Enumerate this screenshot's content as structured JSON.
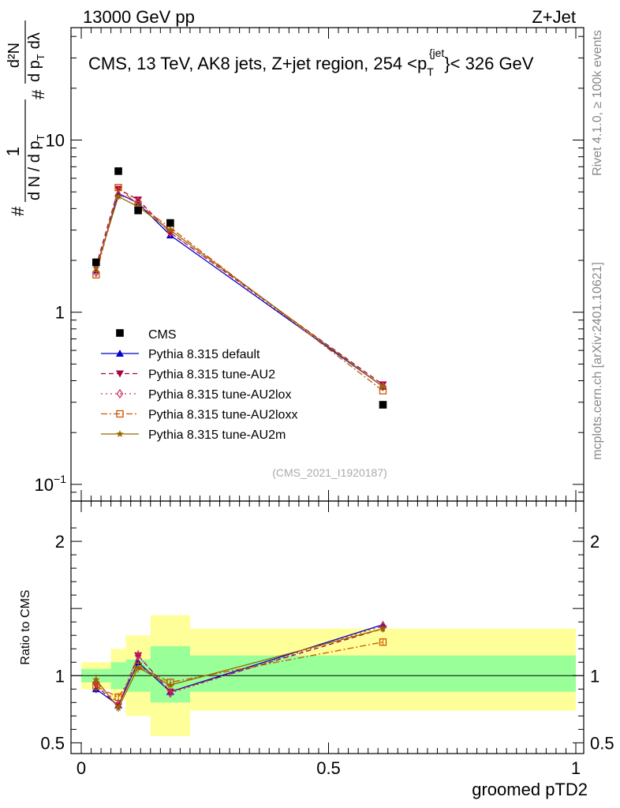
{
  "header": {
    "left": "13000 GeV pp",
    "right": "Z+Jet"
  },
  "chart_data": {
    "type": "line",
    "title": "CMS, 13 TeV, AK8 jets, Z+jet region, 254 <p_T^{jet}< 326 GeV",
    "title_parts": {
      "a": "CMS, 13 TeV, AK8 jets, Z+jet region, 254 <p",
      "sub": "T",
      "sup": "{jet",
      "b": "}< 326 GeV"
    },
    "xlabel": "groomed pTD2",
    "ylabel": "1/dN/dp_T # d^2N/dp_T dλ",
    "ylabel_parts": {
      "hash": "#",
      "one": "1",
      "den": "d N / d p",
      "T": "T",
      "hash2": "#",
      "num": "d²N",
      "den2": "d p",
      "T2": "T",
      "dl": "dλ"
    },
    "ratio_ylabel": "Ratio to CMS",
    "xlim": [
      0,
      1
    ],
    "ylim": [
      0.08,
      45
    ],
    "ratio_ylim": [
      0.42,
      2.3
    ],
    "x_ticks": [
      {
        "v": 0,
        "label": "0"
      },
      {
        "v": 0.5,
        "label": "0.5"
      },
      {
        "v": 1,
        "label": "1"
      }
    ],
    "y_ticks": [
      {
        "v": 10,
        "label": "10"
      },
      {
        "v": 1,
        "label": "1"
      },
      {
        "v": 0.1,
        "label": "10",
        "sup": "−1"
      }
    ],
    "ratio_ticks": [
      {
        "v": 2,
        "label": "2"
      },
      {
        "v": 1,
        "label": "1"
      },
      {
        "v": 0.5,
        "label": "0.5"
      }
    ],
    "x": [
      0.03,
      0.075,
      0.115,
      0.18,
      0.61
    ],
    "bins": [
      [
        0.0,
        0.06
      ],
      [
        0.06,
        0.09
      ],
      [
        0.09,
        0.14
      ],
      [
        0.14,
        0.22
      ],
      [
        0.22,
        1.0
      ]
    ],
    "cms": {
      "name": "CMS",
      "values": [
        1.95,
        6.6,
        3.9,
        3.3,
        0.29
      ]
    },
    "series": [
      {
        "name": "Pythia 8.315 default",
        "color": "#0000cc",
        "dash": "none",
        "marker": "triangle-up",
        "values": [
          1.75,
          4.9,
          4.3,
          2.8,
          0.37
        ],
        "ratio": [
          0.9,
          0.78,
          1.1,
          0.88,
          1.38
        ],
        "err": [
          0.03,
          0.03,
          0.04,
          0.02,
          0.02
        ]
      },
      {
        "name": "Pythia 8.315 tune-AU2",
        "color": "#aa0044",
        "dash": "6,4",
        "marker": "triangle-down",
        "values": [
          1.85,
          5.2,
          4.5,
          2.9,
          0.38
        ],
        "ratio": [
          0.93,
          0.77,
          1.15,
          0.88,
          1.35
        ],
        "err": [
          0.04,
          0.03,
          0.04,
          0.02,
          0.02
        ]
      },
      {
        "name": "Pythia 8.315 tune-AU2lox",
        "color": "#cc3366",
        "dash": "2,4",
        "marker": "diamond",
        "values": [
          1.7,
          4.8,
          4.4,
          2.9,
          0.37
        ],
        "ratio": [
          0.95,
          0.79,
          1.15,
          0.87,
          1.37
        ],
        "err": [
          0.04,
          0.03,
          0.04,
          0.02,
          0.02
        ]
      },
      {
        "name": "Pythia 8.315 tune-AU2loxx",
        "color": "#cc5500",
        "dash": "8,3,2,3",
        "marker": "square-open",
        "values": [
          1.65,
          5.3,
          4.2,
          3.1,
          0.35
        ],
        "ratio": [
          0.92,
          0.84,
          1.07,
          0.95,
          1.25
        ],
        "err": [
          0.04,
          0.03,
          0.04,
          0.02,
          0.02
        ]
      },
      {
        "name": "Pythia 8.315 tune-AU2m",
        "color": "#996600",
        "dash": "none",
        "marker": "star",
        "values": [
          1.8,
          4.7,
          4.1,
          3.0,
          0.37
        ],
        "ratio": [
          0.97,
          0.76,
          1.06,
          0.93,
          1.35
        ],
        "err": [
          0.04,
          0.03,
          0.04,
          0.02,
          0.02
        ]
      }
    ],
    "bands": {
      "green": [
        [
          0.95,
          1.05
        ],
        [
          0.9,
          1.1
        ],
        [
          0.88,
          1.12
        ],
        [
          0.8,
          1.22
        ],
        [
          0.88,
          1.15
        ]
      ],
      "yellow": [
        [
          0.9,
          1.1
        ],
        [
          0.82,
          1.2
        ],
        [
          0.7,
          1.3
        ],
        [
          0.55,
          1.45
        ],
        [
          0.74,
          1.35
        ]
      ]
    },
    "watermark": "(CMS_2021_I1920187)",
    "side_top": "Rivet 4.1.0, ≥ 100k events",
    "side_bottom": "mcplots.cern.ch [arXiv:2401.10621]"
  }
}
